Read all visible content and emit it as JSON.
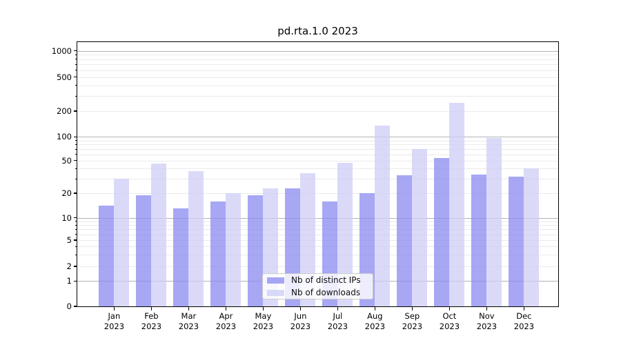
{
  "chart_data": {
    "type": "bar",
    "title": "pd.rta.1.0 2023",
    "xlabel": "",
    "ylabel": "",
    "yscale": "symlog",
    "ylim": [
      0,
      1000
    ],
    "yticks": [
      0,
      1,
      2,
      5,
      10,
      20,
      50,
      100,
      200,
      500,
      1000
    ],
    "grid": "on",
    "legend_position": "lower center",
    "categories_month": [
      "Jan",
      "Feb",
      "Mar",
      "Apr",
      "May",
      "Jun",
      "Jul",
      "Aug",
      "Sep",
      "Oct",
      "Nov",
      "Dec"
    ],
    "categories_year": "2023",
    "series": [
      {
        "name": "Nb of distinct IPs",
        "color": "rgba(138,138,240,0.75)",
        "values": [
          14,
          19,
          13,
          16,
          19,
          23,
          16,
          20,
          33,
          54,
          34,
          32
        ]
      },
      {
        "name": "Nb of downloads",
        "color": "rgba(205,205,246,0.75)",
        "values": [
          30,
          46,
          37,
          20,
          23,
          35,
          47,
          135,
          70,
          250,
          97,
          40
        ]
      }
    ]
  },
  "colors": {
    "grid_major": "#b3b3b3",
    "grid_minor": "#eaeaea",
    "axis": "#000000",
    "background": "#ffffff"
  }
}
